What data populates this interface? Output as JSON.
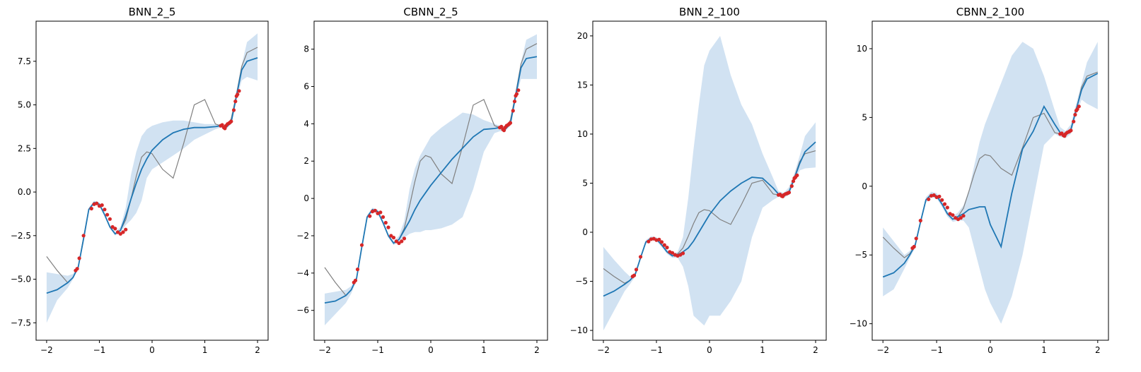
{
  "chart_data": [
    {
      "type": "line",
      "title": "BNN_2_5",
      "xlim": [
        -2.2,
        2.2
      ],
      "ylim": [
        -8.5,
        9.8
      ],
      "xticks": [
        -2,
        -1,
        0,
        1,
        2
      ],
      "xtick_labels": [
        "−2",
        "−1",
        "0",
        "1",
        "2"
      ],
      "yticks": [
        -7.5,
        -5.0,
        -2.5,
        0.0,
        2.5,
        5.0,
        7.5
      ],
      "ytick_labels": [
        "−7.5",
        "−5.0",
        "−2.5",
        "0.0",
        "2.5",
        "5.0",
        "7.5"
      ],
      "x": [
        -2.0,
        -1.8,
        -1.6,
        -1.5,
        -1.4,
        -1.3,
        -1.2,
        -1.1,
        -1.0,
        -0.9,
        -0.8,
        -0.7,
        -0.6,
        -0.5,
        -0.4,
        -0.3,
        -0.2,
        -0.1,
        0.0,
        0.2,
        0.4,
        0.6,
        0.8,
        1.0,
        1.2,
        1.3,
        1.4,
        1.5,
        1.6,
        1.7,
        1.8,
        2.0
      ],
      "mean": [
        -5.8,
        -5.6,
        -5.2,
        -4.9,
        -4.3,
        -2.7,
        -1.0,
        -0.6,
        -0.7,
        -1.3,
        -2.0,
        -2.4,
        -2.2,
        -1.4,
        -0.4,
        0.5,
        1.3,
        1.9,
        2.4,
        3.0,
        3.4,
        3.6,
        3.7,
        3.7,
        3.75,
        3.8,
        3.7,
        4.0,
        5.5,
        7.0,
        7.5,
        7.7
      ],
      "lower": [
        -7.5,
        -6.2,
        -5.5,
        -5.0,
        -4.4,
        -2.8,
        -1.1,
        -0.7,
        -0.8,
        -1.4,
        -2.1,
        -2.5,
        -2.3,
        -1.9,
        -1.6,
        -1.2,
        -0.5,
        0.8,
        1.3,
        1.7,
        2.1,
        2.5,
        3.0,
        3.3,
        3.6,
        3.7,
        3.6,
        3.9,
        5.3,
        6.4,
        6.6,
        6.4
      ],
      "upper": [
        -4.6,
        -4.7,
        -4.8,
        -4.7,
        -4.2,
        -2.6,
        -0.9,
        -0.5,
        -0.6,
        -1.2,
        -1.9,
        -2.3,
        -2.0,
        -0.9,
        1.0,
        2.3,
        3.2,
        3.6,
        3.8,
        4.0,
        4.1,
        4.1,
        4.0,
        3.9,
        3.9,
        3.9,
        3.8,
        4.2,
        5.8,
        7.3,
        8.6,
        9.1
      ],
      "truth_y": [
        -3.7,
        -4.5,
        -5.2,
        -4.9,
        -4.3,
        -2.6,
        -1.0,
        -0.6,
        -0.7,
        -1.3,
        -2.0,
        -2.4,
        -2.2,
        -1.6,
        -0.4,
        0.9,
        2.0,
        2.3,
        2.2,
        1.3,
        0.8,
        2.8,
        5.0,
        5.3,
        3.9,
        3.8,
        3.7,
        4.2,
        5.6,
        7.2,
        8.0,
        8.3
      ],
      "observed": {
        "x": [
          -1.45,
          -1.42,
          -1.38,
          -1.3,
          -1.15,
          -1.1,
          -1.05,
          -1.0,
          -0.95,
          -0.9,
          -0.85,
          -0.8,
          -0.75,
          -0.7,
          -0.65,
          -0.6,
          -0.55,
          -0.5,
          1.3,
          1.33,
          1.36,
          1.38,
          1.4,
          1.43,
          1.46,
          1.48,
          1.5,
          1.55,
          1.58,
          1.6,
          1.62,
          1.65
        ],
        "y": [
          -4.5,
          -4.4,
          -3.8,
          -2.5,
          -0.95,
          -0.7,
          -0.65,
          -0.8,
          -0.75,
          -1.0,
          -1.3,
          -1.55,
          -2.0,
          -2.1,
          -2.3,
          -2.4,
          -2.3,
          -2.15,
          3.8,
          3.85,
          3.7,
          3.65,
          3.8,
          3.9,
          3.95,
          4.0,
          4.05,
          4.7,
          5.2,
          5.5,
          5.6,
          5.8
        ]
      }
    },
    {
      "type": "line",
      "title": "CBNN_2_5",
      "xlim": [
        -2.2,
        2.2
      ],
      "ylim": [
        -7.6,
        9.5
      ],
      "xticks": [
        -2,
        -1,
        0,
        1,
        2
      ],
      "xtick_labels": [
        "−2",
        "−1",
        "0",
        "1",
        "2"
      ],
      "yticks": [
        -6,
        -4,
        -2,
        0,
        2,
        4,
        6,
        8
      ],
      "ytick_labels": [
        "−6",
        "−4",
        "−2",
        "0",
        "2",
        "4",
        "6",
        "8"
      ],
      "x": [
        -2.0,
        -1.8,
        -1.6,
        -1.5,
        -1.4,
        -1.3,
        -1.2,
        -1.1,
        -1.0,
        -0.9,
        -0.8,
        -0.7,
        -0.6,
        -0.5,
        -0.4,
        -0.3,
        -0.2,
        -0.1,
        0.0,
        0.2,
        0.4,
        0.6,
        0.8,
        1.0,
        1.2,
        1.3,
        1.4,
        1.5,
        1.6,
        1.7,
        1.8,
        2.0
      ],
      "mean": [
        -5.6,
        -5.5,
        -5.2,
        -4.9,
        -4.3,
        -2.6,
        -1.0,
        -0.6,
        -0.7,
        -1.3,
        -2.0,
        -2.4,
        -2.2,
        -1.7,
        -1.2,
        -0.6,
        -0.1,
        0.3,
        0.7,
        1.4,
        2.1,
        2.7,
        3.3,
        3.7,
        3.75,
        3.8,
        3.7,
        4.0,
        5.5,
        7.0,
        7.5,
        7.6
      ],
      "lower": [
        -6.8,
        -6.2,
        -5.6,
        -5.1,
        -4.4,
        -2.7,
        -1.1,
        -0.7,
        -0.8,
        -1.4,
        -2.1,
        -2.5,
        -2.3,
        -2.1,
        -1.9,
        -1.8,
        -1.8,
        -1.7,
        -1.7,
        -1.6,
        -1.4,
        -1.0,
        0.5,
        2.5,
        3.5,
        3.6,
        3.6,
        3.9,
        5.3,
        6.4,
        6.4,
        6.4
      ],
      "upper": [
        -5.1,
        -5.0,
        -4.9,
        -4.7,
        -4.2,
        -2.5,
        -0.9,
        -0.5,
        -0.6,
        -1.2,
        -1.9,
        -2.3,
        -2.0,
        -1.2,
        0.5,
        1.6,
        2.3,
        2.8,
        3.3,
        3.8,
        4.2,
        4.6,
        4.5,
        4.2,
        4.0,
        3.9,
        3.8,
        4.2,
        5.8,
        7.3,
        8.5,
        8.8
      ],
      "truth_y": [
        -3.7,
        -4.5,
        -5.2,
        -4.9,
        -4.3,
        -2.6,
        -1.0,
        -0.6,
        -0.7,
        -1.3,
        -2.0,
        -2.4,
        -2.2,
        -1.6,
        -0.4,
        0.9,
        2.0,
        2.3,
        2.2,
        1.3,
        0.8,
        2.8,
        5.0,
        5.3,
        3.9,
        3.8,
        3.7,
        4.2,
        5.6,
        7.2,
        8.0,
        8.3
      ],
      "observed": {
        "x": [
          -1.45,
          -1.42,
          -1.38,
          -1.3,
          -1.15,
          -1.1,
          -1.05,
          -1.0,
          -0.95,
          -0.9,
          -0.85,
          -0.8,
          -0.75,
          -0.7,
          -0.65,
          -0.6,
          -0.55,
          -0.5,
          1.3,
          1.33,
          1.36,
          1.38,
          1.4,
          1.43,
          1.46,
          1.48,
          1.5,
          1.55,
          1.58,
          1.6,
          1.62,
          1.65
        ],
        "y": [
          -4.5,
          -4.4,
          -3.8,
          -2.5,
          -0.95,
          -0.7,
          -0.65,
          -0.8,
          -0.75,
          -1.0,
          -1.3,
          -1.55,
          -2.0,
          -2.1,
          -2.3,
          -2.4,
          -2.3,
          -2.15,
          3.8,
          3.85,
          3.7,
          3.65,
          3.8,
          3.9,
          3.95,
          4.0,
          4.05,
          4.7,
          5.2,
          5.5,
          5.6,
          5.8
        ]
      }
    },
    {
      "type": "line",
      "title": "BNN_2_100",
      "xlim": [
        -2.2,
        2.2
      ],
      "ylim": [
        -11.0,
        21.5
      ],
      "xticks": [
        -2,
        -1,
        0,
        1,
        2
      ],
      "xtick_labels": [
        "−2",
        "−1",
        "0",
        "1",
        "2"
      ],
      "yticks": [
        -10,
        -5,
        0,
        5,
        10,
        15,
        20
      ],
      "ytick_labels": [
        "−10",
        "−5",
        "0",
        "5",
        "10",
        "15",
        "20"
      ],
      "x": [
        -2.0,
        -1.8,
        -1.6,
        -1.5,
        -1.4,
        -1.3,
        -1.2,
        -1.1,
        -1.0,
        -0.9,
        -0.8,
        -0.7,
        -0.6,
        -0.5,
        -0.4,
        -0.3,
        -0.2,
        -0.1,
        0.0,
        0.2,
        0.4,
        0.6,
        0.8,
        1.0,
        1.2,
        1.3,
        1.4,
        1.5,
        1.6,
        1.7,
        1.8,
        2.0
      ],
      "mean": [
        -6.5,
        -6.0,
        -5.3,
        -4.9,
        -4.3,
        -2.6,
        -1.0,
        -0.6,
        -0.7,
        -1.3,
        -2.0,
        -2.4,
        -2.3,
        -2.0,
        -1.6,
        -0.9,
        0.0,
        0.9,
        1.8,
        3.2,
        4.2,
        5.0,
        5.6,
        5.5,
        4.5,
        3.9,
        3.7,
        4.1,
        5.5,
        7.0,
        8.2,
        9.2
      ],
      "lower": [
        -10.0,
        -8.0,
        -6.0,
        -5.3,
        -4.5,
        -2.8,
        -1.2,
        -0.8,
        -0.9,
        -1.5,
        -2.2,
        -2.6,
        -2.6,
        -3.5,
        -5.5,
        -8.5,
        -9.0,
        -9.5,
        -8.5,
        -8.5,
        -7.0,
        -5.0,
        -0.5,
        2.5,
        3.3,
        3.6,
        3.5,
        3.8,
        5.2,
        6.3,
        6.5,
        6.6
      ],
      "upper": [
        -1.5,
        -2.8,
        -4.0,
        -4.5,
        -4.1,
        -2.4,
        -0.8,
        -0.4,
        -0.5,
        -1.1,
        -1.8,
        -2.2,
        -2.0,
        -0.5,
        3.5,
        8.5,
        13.0,
        17.0,
        18.5,
        20.0,
        16.0,
        13.0,
        11.0,
        8.0,
        5.5,
        4.2,
        4.0,
        4.6,
        6.0,
        7.8,
        9.8,
        11.2
      ],
      "truth_y": [
        -3.7,
        -4.5,
        -5.2,
        -4.9,
        -4.3,
        -2.6,
        -1.0,
        -0.6,
        -0.7,
        -1.3,
        -2.0,
        -2.4,
        -2.2,
        -1.6,
        -0.4,
        0.9,
        2.0,
        2.3,
        2.2,
        1.3,
        0.8,
        2.8,
        5.0,
        5.3,
        3.9,
        3.8,
        3.7,
        4.2,
        5.6,
        7.2,
        8.0,
        8.3
      ],
      "observed": {
        "x": [
          -1.45,
          -1.42,
          -1.38,
          -1.3,
          -1.15,
          -1.1,
          -1.05,
          -1.0,
          -0.95,
          -0.9,
          -0.85,
          -0.8,
          -0.75,
          -0.7,
          -0.65,
          -0.6,
          -0.55,
          -0.5,
          1.3,
          1.33,
          1.36,
          1.38,
          1.4,
          1.43,
          1.46,
          1.48,
          1.5,
          1.55,
          1.58,
          1.6,
          1.62,
          1.65
        ],
        "y": [
          -4.5,
          -4.4,
          -3.8,
          -2.5,
          -0.95,
          -0.7,
          -0.65,
          -0.8,
          -0.75,
          -1.0,
          -1.3,
          -1.55,
          -2.0,
          -2.1,
          -2.3,
          -2.4,
          -2.3,
          -2.15,
          3.8,
          3.85,
          3.7,
          3.65,
          3.8,
          3.9,
          3.95,
          4.0,
          4.05,
          4.7,
          5.2,
          5.5,
          5.6,
          5.8
        ]
      }
    },
    {
      "type": "line",
      "title": "CBNN_2_100",
      "xlim": [
        -2.2,
        2.2
      ],
      "ylim": [
        -11.2,
        12.0
      ],
      "xticks": [
        -2,
        -1,
        0,
        1,
        2
      ],
      "xtick_labels": [
        "−2",
        "−1",
        "0",
        "1",
        "2"
      ],
      "yticks": [
        -10,
        -5,
        0,
        5,
        10
      ],
      "ytick_labels": [
        "−10",
        "−5",
        "0",
        "5",
        "10"
      ],
      "x": [
        -2.0,
        -1.8,
        -1.6,
        -1.5,
        -1.4,
        -1.3,
        -1.2,
        -1.1,
        -1.0,
        -0.9,
        -0.8,
        -0.7,
        -0.6,
        -0.5,
        -0.4,
        -0.3,
        -0.2,
        -0.1,
        0.0,
        0.2,
        0.4,
        0.6,
        0.8,
        1.0,
        1.2,
        1.3,
        1.4,
        1.5,
        1.6,
        1.7,
        1.8,
        2.0
      ],
      "mean": [
        -6.6,
        -6.3,
        -5.6,
        -5.0,
        -4.3,
        -2.6,
        -1.0,
        -0.6,
        -0.7,
        -1.3,
        -2.0,
        -2.4,
        -2.2,
        -2.0,
        -1.7,
        -1.6,
        -1.5,
        -1.5,
        -2.8,
        -4.4,
        -0.5,
        2.7,
        4.0,
        5.8,
        4.5,
        3.9,
        3.7,
        4.1,
        5.6,
        7.0,
        7.8,
        8.2
      ],
      "lower": [
        -8.0,
        -7.5,
        -6.0,
        -5.2,
        -4.5,
        -2.8,
        -1.2,
        -0.8,
        -0.9,
        -1.5,
        -2.2,
        -2.6,
        -2.5,
        -2.5,
        -3.0,
        -4.5,
        -6.0,
        -7.5,
        -8.5,
        -10.0,
        -8.0,
        -5.0,
        -1.0,
        3.0,
        3.8,
        3.6,
        3.5,
        3.8,
        5.2,
        6.3,
        6.0,
        5.6
      ],
      "upper": [
        -3.0,
        -4.0,
        -5.0,
        -4.7,
        -4.1,
        -2.4,
        -0.8,
        -0.4,
        -0.5,
        -1.1,
        -1.8,
        -2.2,
        -1.9,
        -1.4,
        -0.3,
        1.5,
        3.2,
        4.5,
        5.5,
        7.5,
        9.5,
        10.5,
        10.0,
        8.0,
        5.5,
        4.3,
        4.0,
        4.5,
        6.0,
        7.5,
        9.0,
        10.5
      ],
      "truth_y": [
        -3.7,
        -4.5,
        -5.2,
        -4.9,
        -4.3,
        -2.6,
        -1.0,
        -0.6,
        -0.7,
        -1.3,
        -2.0,
        -2.4,
        -2.2,
        -1.6,
        -0.4,
        0.9,
        2.0,
        2.3,
        2.2,
        1.3,
        0.8,
        2.8,
        5.0,
        5.3,
        3.9,
        3.8,
        3.7,
        4.2,
        5.6,
        7.2,
        8.0,
        8.3
      ],
      "observed": {
        "x": [
          -1.45,
          -1.42,
          -1.38,
          -1.3,
          -1.15,
          -1.1,
          -1.05,
          -1.0,
          -0.95,
          -0.9,
          -0.85,
          -0.8,
          -0.75,
          -0.7,
          -0.65,
          -0.6,
          -0.55,
          -0.5,
          1.3,
          1.33,
          1.36,
          1.38,
          1.4,
          1.43,
          1.46,
          1.48,
          1.5,
          1.55,
          1.58,
          1.6,
          1.62,
          1.65
        ],
        "y": [
          -4.5,
          -4.4,
          -3.8,
          -2.5,
          -0.95,
          -0.7,
          -0.65,
          -0.8,
          -0.75,
          -1.0,
          -1.3,
          -1.55,
          -2.0,
          -2.1,
          -2.3,
          -2.4,
          -2.3,
          -2.15,
          3.8,
          3.85,
          3.7,
          3.65,
          3.8,
          3.9,
          3.95,
          4.0,
          4.05,
          4.7,
          5.2,
          5.5,
          5.6,
          5.8
        ]
      }
    }
  ],
  "colors": {
    "mean": "#1f77b4",
    "band": "#c6dbef",
    "truth": "#808080",
    "observed": "#d62728",
    "axis": "#000000"
  }
}
